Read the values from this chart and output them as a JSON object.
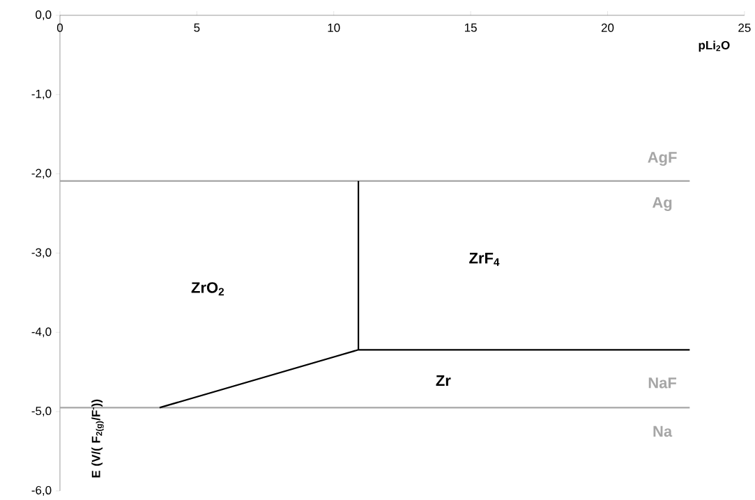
{
  "chart_data": {
    "type": "line",
    "xlabel": "pLi$_{2}$O",
    "ylabel": "E (V/( F$_{2(g)}$/F$^{-}$))",
    "xlim": [
      0,
      25
    ],
    "xticks": [
      0,
      5,
      10,
      15,
      20,
      25
    ],
    "ylim": [
      -6,
      0
    ],
    "yticks": [
      {
        "value": 0,
        "label": "0,0"
      },
      {
        "value": -1,
        "label": "-1,0"
      },
      {
        "value": -2,
        "label": "-2,0"
      },
      {
        "value": -3,
        "label": "-3,0"
      },
      {
        "value": -4,
        "label": "-4,0"
      },
      {
        "value": -5,
        "label": "-5,0"
      },
      {
        "value": -6,
        "label": "-6,0"
      }
    ],
    "series": [
      {
        "color": "#a6a6a6",
        "x": [
          0,
          23
        ],
        "values": [
          -2.09,
          -2.09
        ]
      },
      {
        "color": "#a6a6a6",
        "x": [
          0,
          23
        ],
        "values": [
          -4.95,
          -4.95
        ]
      },
      {
        "color": "#000000",
        "x": [
          10.9,
          10.9
        ],
        "values": [
          -2.09,
          -4.22
        ]
      },
      {
        "color": "#000000",
        "x": [
          3.64,
          10.9,
          23
        ],
        "values": [
          -4.95,
          -4.22,
          -4.22
        ]
      }
    ],
    "annotations": [
      "AgF",
      "Ag",
      "ZrO$_{2}$",
      "ZrF$_{4}$",
      "Zr",
      "NaF",
      "Na"
    ],
    "grid": false,
    "marker": "none",
    "line_style": "solid"
  }
}
